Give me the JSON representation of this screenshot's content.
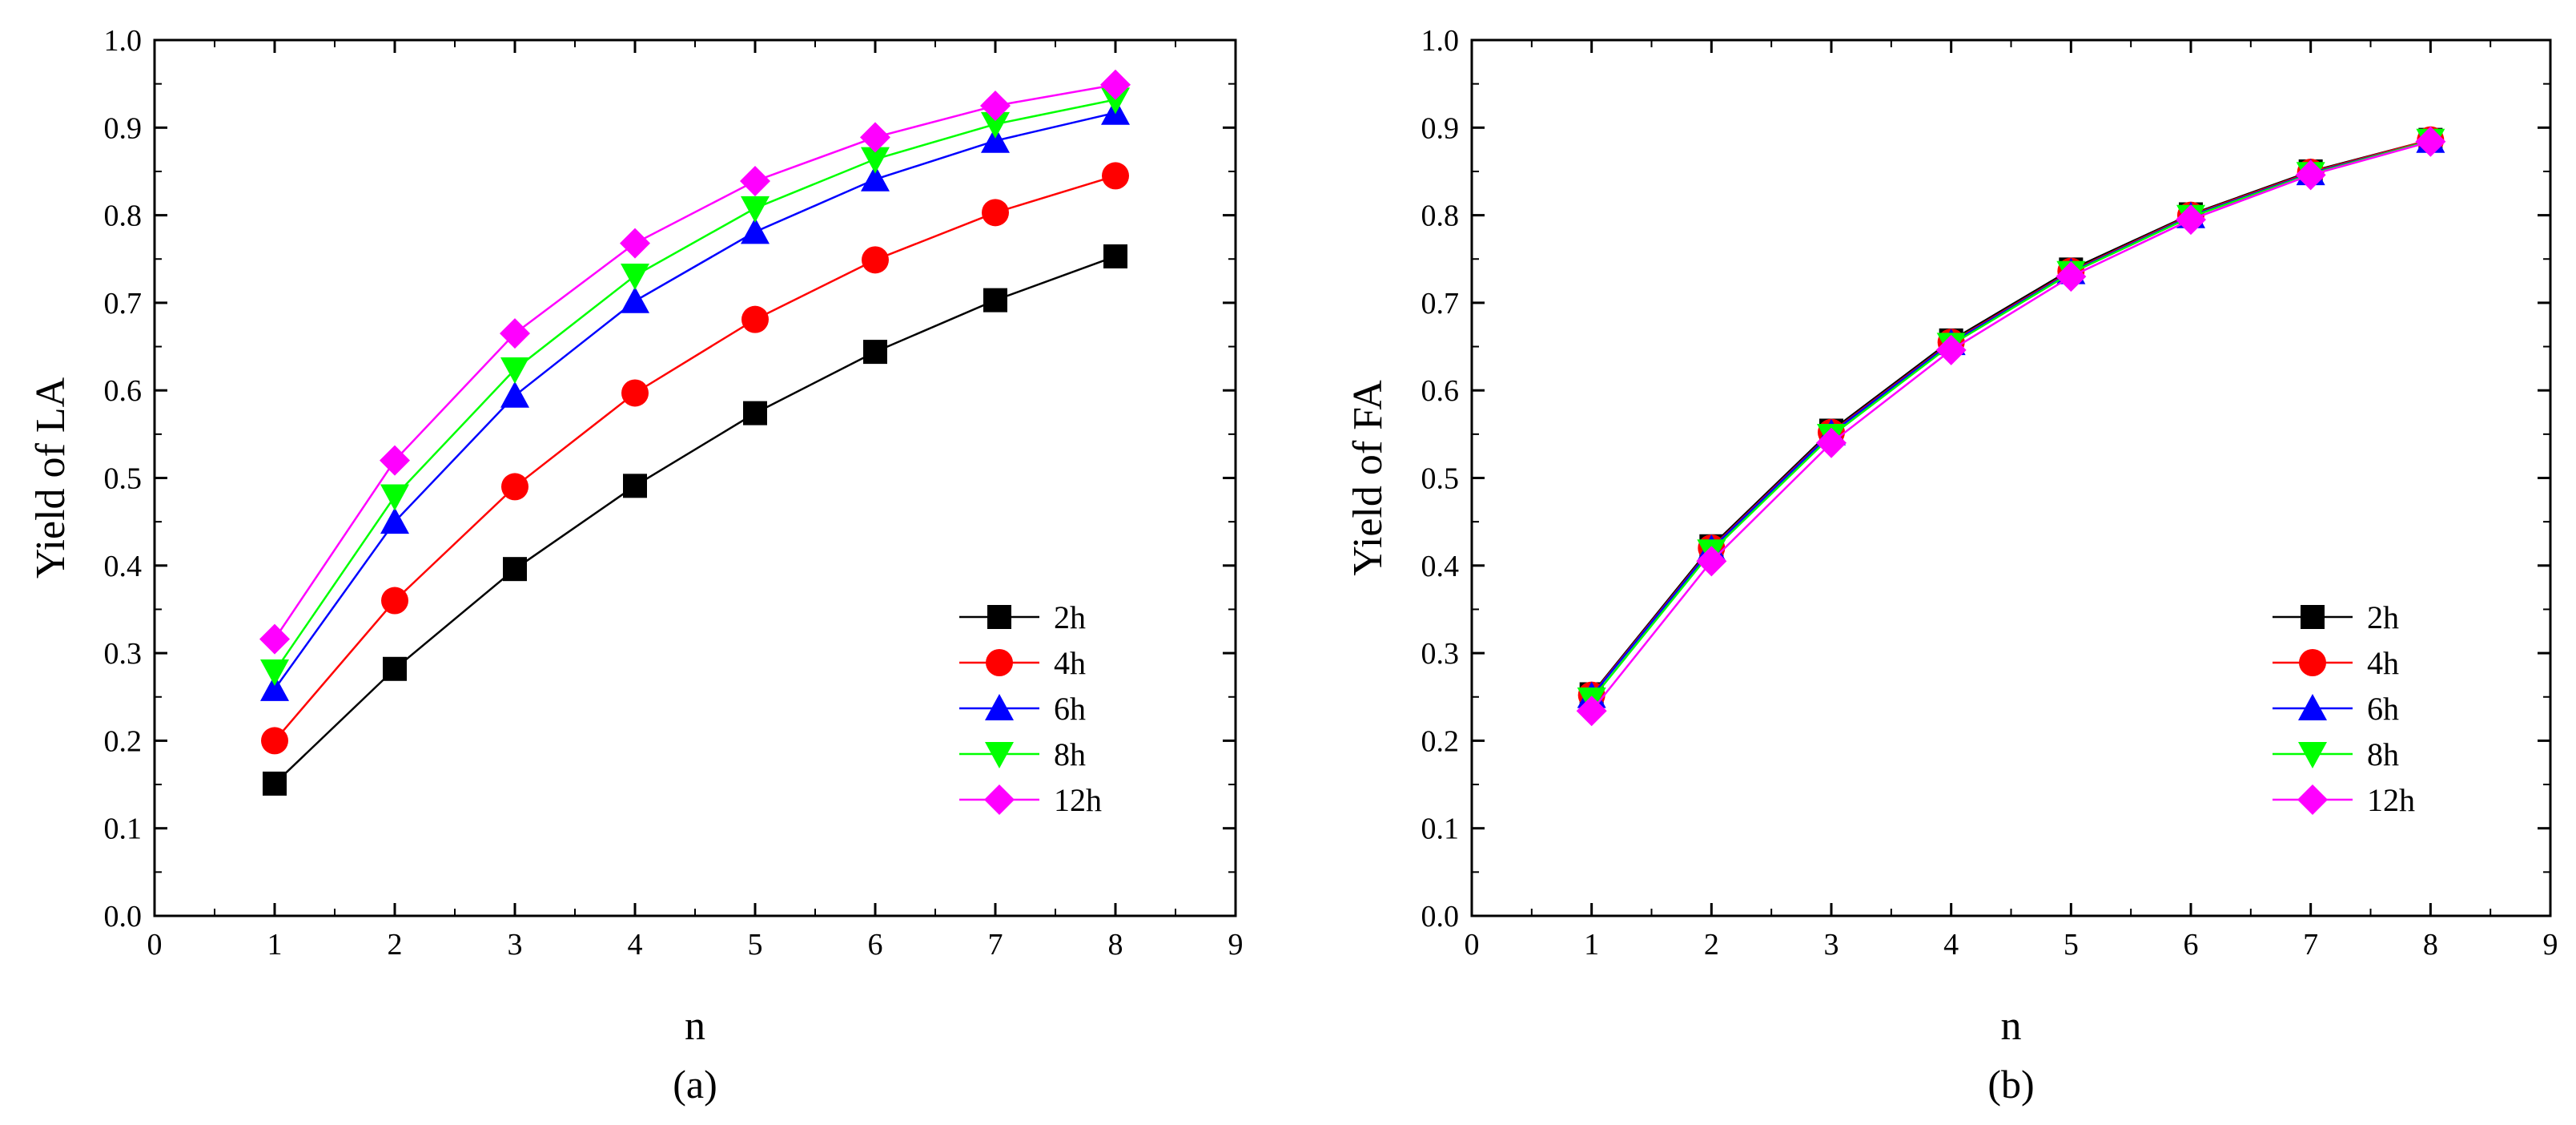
{
  "chart_data": [
    {
      "type": "line",
      "caption": "(a)",
      "xlabel": "n",
      "ylabel": "Yield of LA",
      "xlim": [
        0,
        9
      ],
      "ylim": [
        0.0,
        1.0
      ],
      "xticks": [
        "0",
        "1",
        "2",
        "3",
        "4",
        "5",
        "6",
        "7",
        "8",
        "9"
      ],
      "yticks": [
        "0.0",
        "0.1",
        "0.2",
        "0.3",
        "0.4",
        "0.5",
        "0.6",
        "0.7",
        "0.8",
        "0.9",
        "1.0"
      ],
      "legend_position": "bottom-right",
      "x": [
        1,
        2,
        3,
        4,
        5,
        6,
        7,
        8
      ],
      "series": [
        {
          "name": "2h",
          "color": "#000000",
          "marker": "square",
          "values": [
            0.151,
            0.282,
            0.396,
            0.491,
            0.574,
            0.644,
            0.703,
            0.753
          ]
        },
        {
          "name": "4h",
          "color": "#ff0000",
          "marker": "circle",
          "values": [
            0.2,
            0.36,
            0.49,
            0.597,
            0.681,
            0.749,
            0.803,
            0.845
          ]
        },
        {
          "name": "6h",
          "color": "#0000ff",
          "marker": "triangle-up",
          "values": [
            0.259,
            0.45,
            0.594,
            0.702,
            0.781,
            0.841,
            0.885,
            0.917
          ]
        },
        {
          "name": "8h",
          "color": "#00ff00",
          "marker": "triangle-down",
          "values": [
            0.279,
            0.479,
            0.624,
            0.731,
            0.808,
            0.864,
            0.904,
            0.932
          ]
        },
        {
          "name": "12h",
          "color": "#ff00ff",
          "marker": "diamond",
          "values": [
            0.316,
            0.52,
            0.665,
            0.768,
            0.839,
            0.889,
            0.925,
            0.949
          ]
        }
      ]
    },
    {
      "type": "line",
      "caption": "(b)",
      "xlabel": "n",
      "ylabel": "Yield of FA",
      "xlim": [
        0,
        9
      ],
      "ylim": [
        0.0,
        1.0
      ],
      "xticks": [
        "0",
        "1",
        "2",
        "3",
        "4",
        "5",
        "6",
        "7",
        "8",
        "9"
      ],
      "yticks": [
        "0.0",
        "0.1",
        "0.2",
        "0.3",
        "0.4",
        "0.5",
        "0.6",
        "0.7",
        "0.8",
        "0.9",
        "1.0"
      ],
      "legend_position": "bottom-right",
      "x": [
        1,
        2,
        3,
        4,
        5,
        6,
        7,
        8
      ],
      "series": [
        {
          "name": "2h",
          "color": "#000000",
          "marker": "square",
          "values": [
            0.253,
            0.422,
            0.554,
            0.657,
            0.738,
            0.801,
            0.85,
            0.886
          ]
        },
        {
          "name": "4h",
          "color": "#ff0000",
          "marker": "circle",
          "values": [
            0.252,
            0.42,
            0.552,
            0.655,
            0.736,
            0.8,
            0.849,
            0.886
          ]
        },
        {
          "name": "6h",
          "color": "#0000ff",
          "marker": "triangle-up",
          "values": [
            0.251,
            0.419,
            0.551,
            0.654,
            0.735,
            0.799,
            0.848,
            0.885
          ]
        },
        {
          "name": "8h",
          "color": "#00ff00",
          "marker": "triangle-down",
          "values": [
            0.247,
            0.416,
            0.548,
            0.652,
            0.734,
            0.798,
            0.847,
            0.885
          ]
        },
        {
          "name": "12h",
          "color": "#ff00ff",
          "marker": "diamond",
          "values": [
            0.234,
            0.405,
            0.54,
            0.646,
            0.73,
            0.795,
            0.846,
            0.884
          ]
        }
      ]
    }
  ]
}
